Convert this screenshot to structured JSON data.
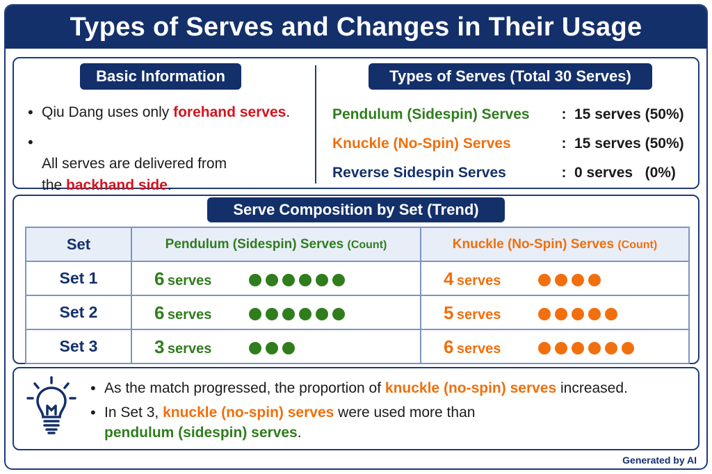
{
  "title": "Types of Serves and Changes in Their Usage",
  "basic_info": {
    "heading": "Basic Information",
    "bullets": [
      {
        "before": "Qiu Dang uses only ",
        "highlight": "forehand serves",
        "after": "."
      },
      {
        "before": "All serves are delivered from\nthe ",
        "highlight": "backhand side",
        "after": "."
      }
    ]
  },
  "serve_types": {
    "heading": "Types of Serves (Total 30 Serves)",
    "rows": [
      {
        "name": "Pendulum (Sidespin) Serves",
        "colon": ":",
        "value": "15 serves (50%)",
        "color": "#2f7d1d"
      },
      {
        "name": "Knuckle (No-Spin) Serves",
        "colon": ":",
        "value": "15 serves (50%)",
        "color": "#ef6f0c"
      },
      {
        "name": "Reverse Sidespin Serves",
        "colon": ":",
        "value": "0 serves   (0%)",
        "color": "#14306b"
      }
    ]
  },
  "composition": {
    "heading": "Serve Composition by Set (Trend)",
    "col_set": "Set",
    "col_pendulum": "Pendulum (Sidespin) Serves",
    "col_knuckle": "Knuckle (No-Spin) Serves",
    "count_label": "(Count)",
    "unit": "serves",
    "rows": [
      {
        "set": "Set 1",
        "pendulum": 6,
        "knuckle": 4
      },
      {
        "set": "Set 2",
        "pendulum": 6,
        "knuckle": 5
      },
      {
        "set": "Set 3",
        "pendulum": 3,
        "knuckle": 6
      }
    ],
    "colors": {
      "pendulum": "#2f7d1d",
      "knuckle": "#ef6f0c"
    }
  },
  "chart_data": {
    "type": "table",
    "title": "Serve Composition by Set (Trend)",
    "categories": [
      "Set 1",
      "Set 2",
      "Set 3"
    ],
    "series": [
      {
        "name": "Pendulum (Sidespin) Serves",
        "values": [
          6,
          6,
          3
        ]
      },
      {
        "name": "Knuckle (No-Spin) Serves",
        "values": [
          4,
          5,
          6
        ]
      }
    ]
  },
  "insights": {
    "icon": "lightbulb-icon",
    "bullets": [
      {
        "before": "As the match progressed, the proportion of ",
        "highlight": "knuckle (no-spin) serves",
        "after": " increased."
      },
      {
        "before": "In Set 3, ",
        "highlight": "knuckle (no-spin) serves",
        "after": " were used more than",
        "line2": "pendulum (sidespin) serves",
        "line2_after": "."
      }
    ]
  },
  "footer": "Generated by AI"
}
